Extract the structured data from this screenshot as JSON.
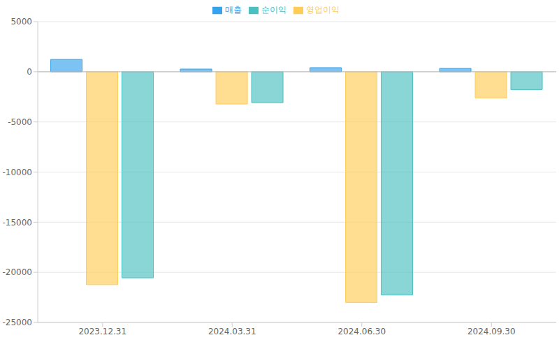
{
  "chart_data": {
    "type": "bar",
    "categories": [
      "2023.12.31",
      "2024.03.31",
      "2024.06.30",
      "2024.09.30"
    ],
    "series": [
      {
        "name": "매출",
        "color": "#36a2eb",
        "values": [
          1230,
          270,
          410,
          340
        ]
      },
      {
        "name": "영업이익",
        "color": "#ffcd56",
        "values": [
          -21230,
          -3220,
          -23010,
          -2600
        ]
      },
      {
        "name": "순이익",
        "color": "#4bc0c0",
        "values": [
          -20550,
          -3080,
          -22260,
          -1780
        ]
      }
    ],
    "ylim": [
      -25000,
      5000
    ],
    "yticks": [
      -25000,
      -20000,
      -15000,
      -10000,
      -5000,
      0,
      5000
    ],
    "grid": true,
    "legend": "top"
  }
}
